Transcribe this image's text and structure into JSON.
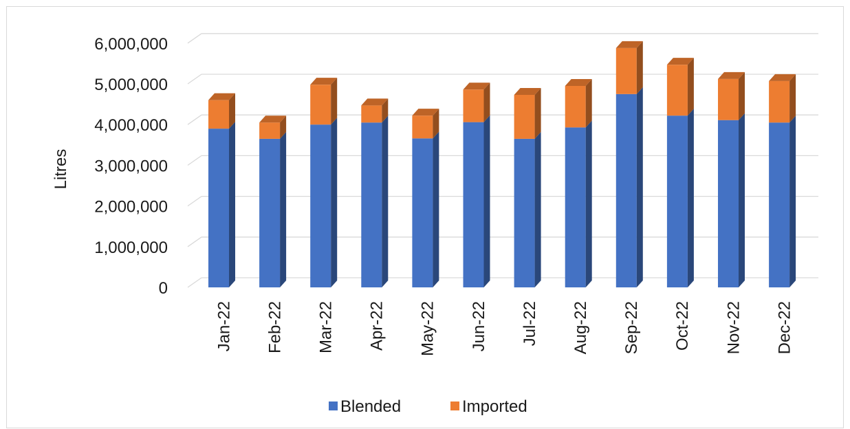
{
  "chart_data": {
    "type": "bar",
    "stacked": true,
    "style": "3d-column",
    "categories": [
      "Jan-22",
      "Feb-22",
      "Mar-22",
      "Apr-22",
      "May-22",
      "Jun-22",
      "Jul-22",
      "Aug-22",
      "Sep-22",
      "Oct-22",
      "Nov-22",
      "Dec-22"
    ],
    "series": [
      {
        "name": "Blended",
        "color": "#4472c4",
        "values": [
          3900000,
          3650000,
          4000000,
          4050000,
          3660000,
          4060000,
          3650000,
          3930000,
          4750000,
          4220000,
          4110000,
          4050000
        ]
      },
      {
        "name": "Imported",
        "color": "#ed7d31",
        "values": [
          700000,
          400000,
          980000,
          420000,
          560000,
          800000,
          1080000,
          1020000,
          1130000,
          1250000,
          1010000,
          1020000
        ]
      }
    ],
    "ylabel": "Litres",
    "xlabel": "",
    "ylim": [
      0,
      6000000
    ],
    "yticks": [
      "0",
      "1,000,000",
      "2,000,000",
      "3,000,000",
      "4,000,000",
      "5,000,000",
      "6,000,000"
    ],
    "grid": true,
    "legend": "bottom"
  }
}
